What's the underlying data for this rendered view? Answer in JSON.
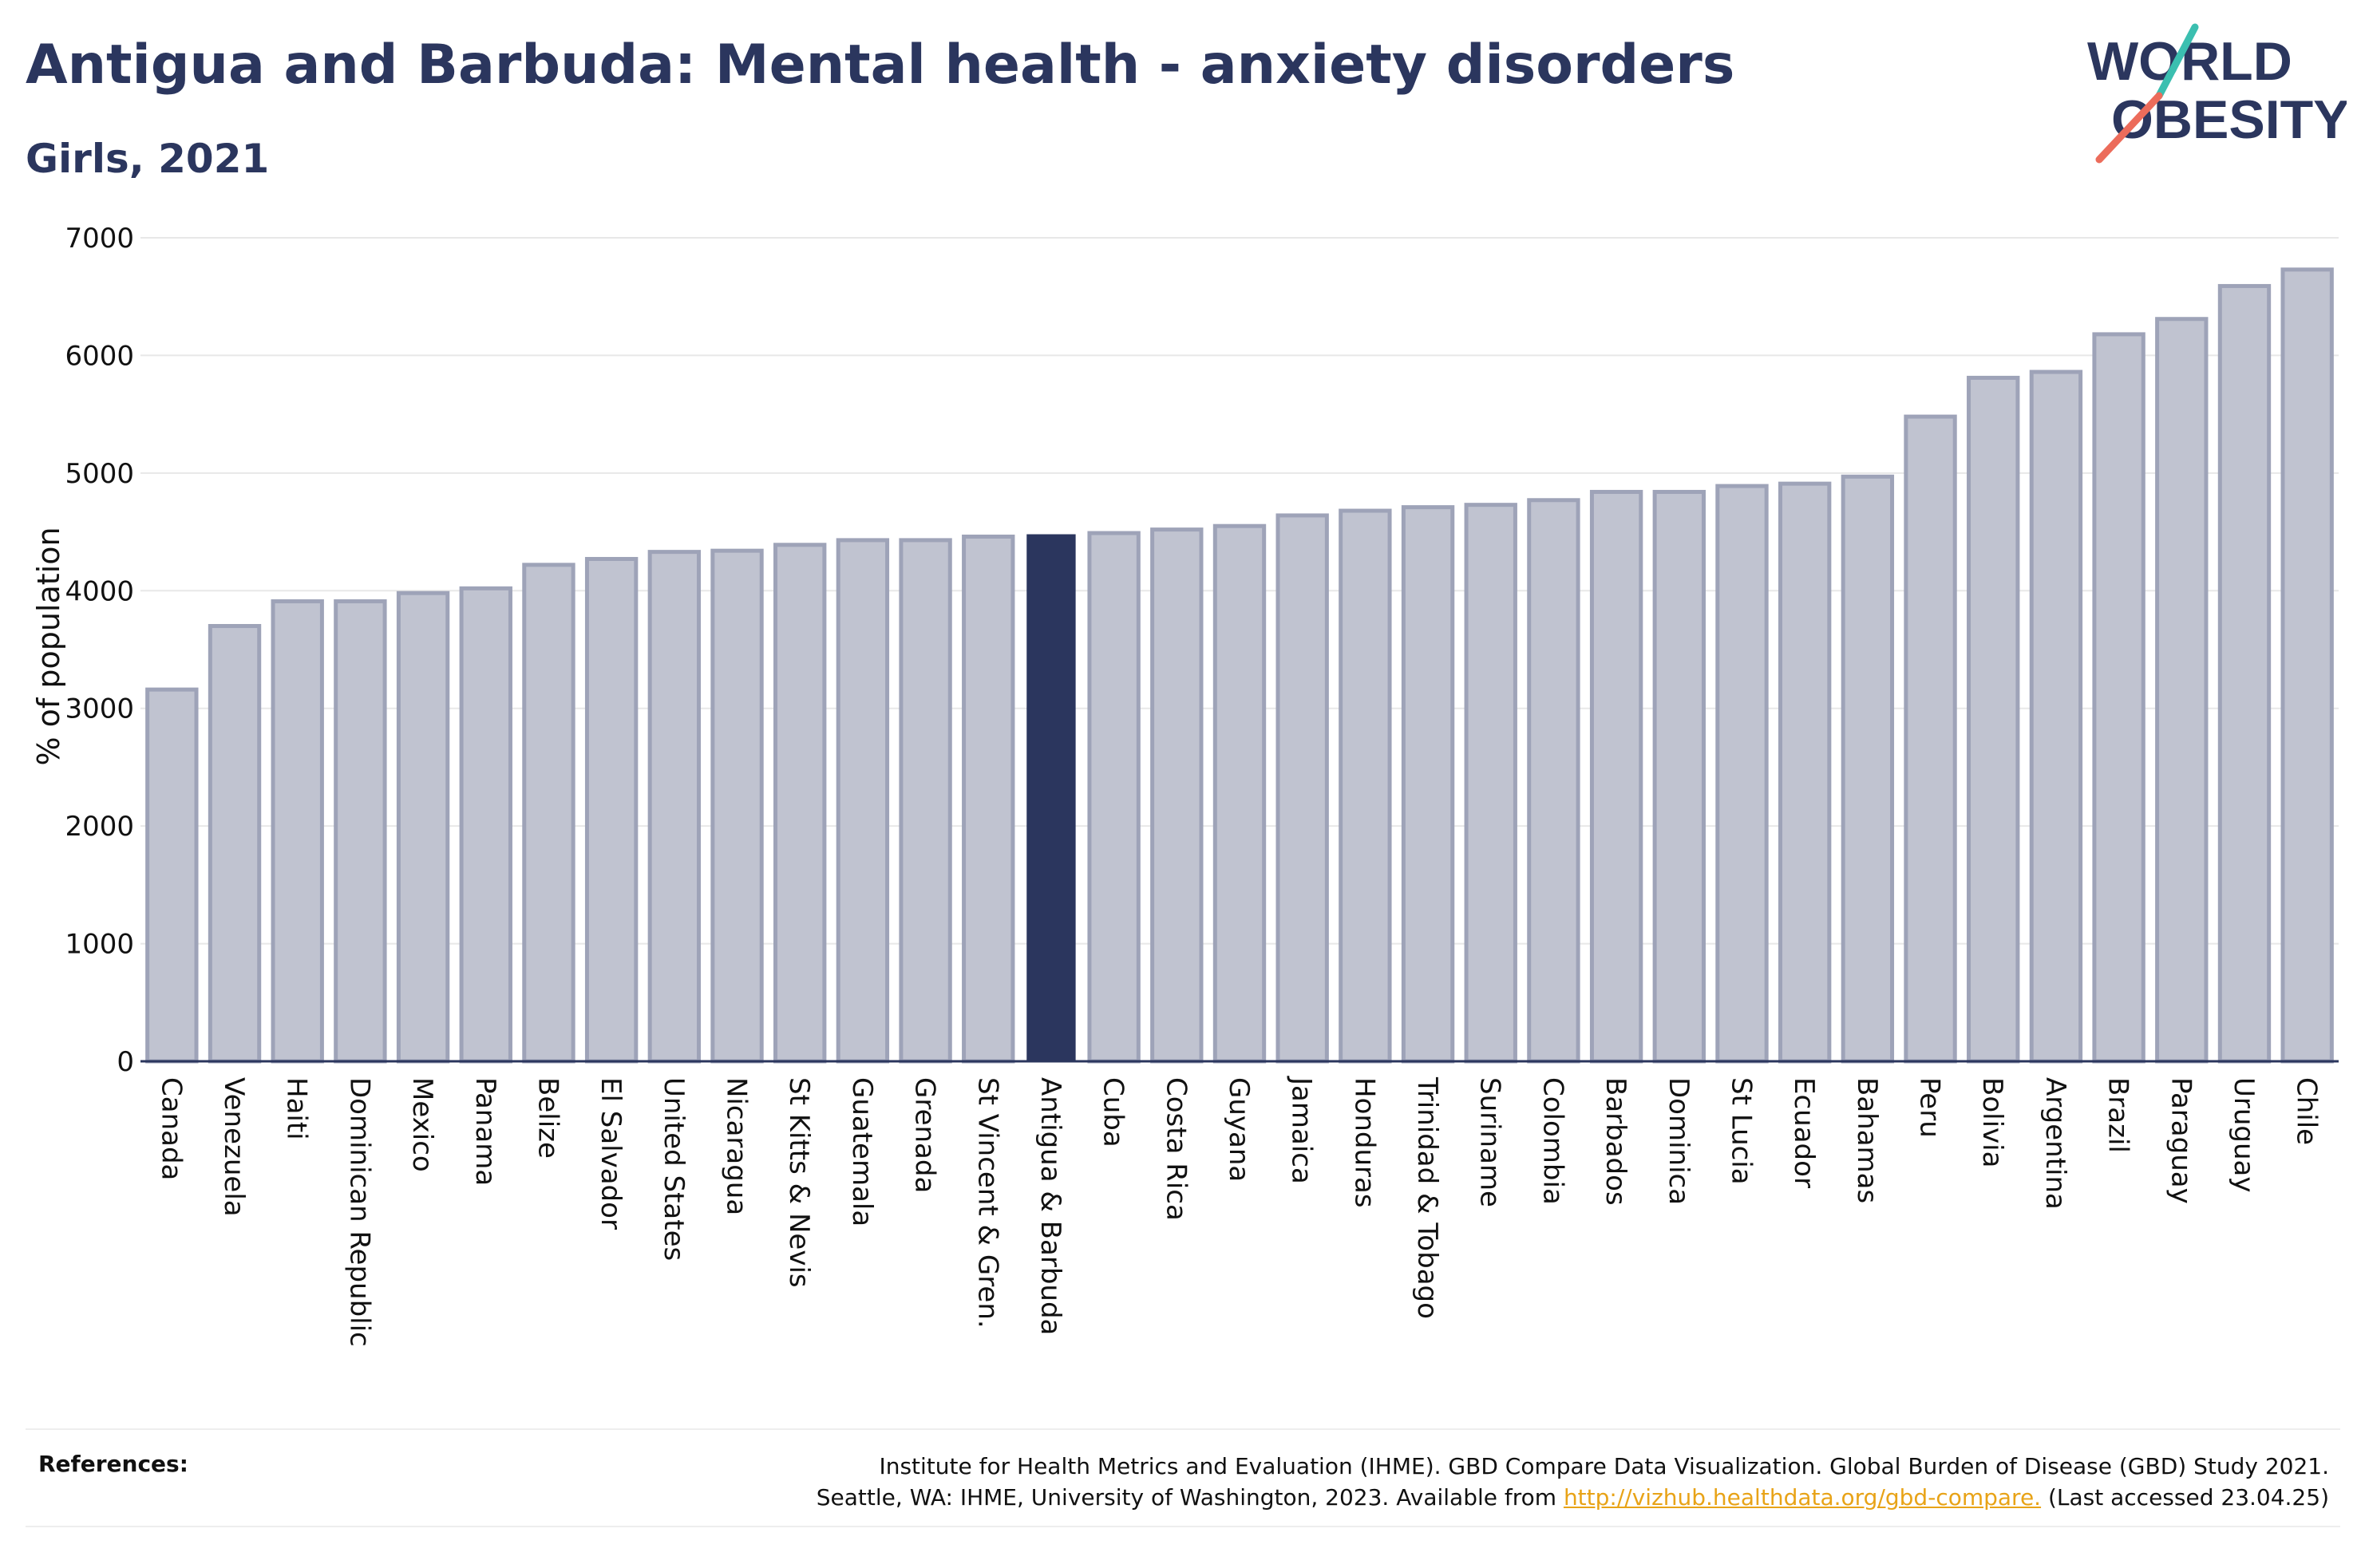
{
  "header": {
    "title": "Antigua and Barbuda: Mental health - anxiety disorders",
    "subtitle": "Girls, 2021"
  },
  "logo": {
    "line1": "WORLD",
    "line2": "OBESITY"
  },
  "colors": {
    "highlight_bar": "#2b365e",
    "other_bar": "#c0c3d0",
    "other_bar_border": "#9ea3b8",
    "grid": "#e8e8e8",
    "link": "#e8a317"
  },
  "chart_data": {
    "type": "bar",
    "ylabel": "% of population",
    "ylim": [
      0,
      7000
    ],
    "yticks": [
      0,
      1000,
      2000,
      3000,
      4000,
      5000,
      6000,
      7000
    ],
    "grid": true,
    "highlight": "Antigua & Barbuda",
    "categories": [
      "Canada",
      "Venezuela",
      "Haiti",
      "Dominican Republic",
      "Mexico",
      "Panama",
      "Belize",
      "El Salvador",
      "United States",
      "Nicaragua",
      "St Kitts & Nevis",
      "Guatemala",
      "Grenada",
      "St Vincent & Gren.",
      "Antigua & Barbuda",
      "Cuba",
      "Costa Rica",
      "Guyana",
      "Jamaica",
      "Honduras",
      "Trinidad & Tobago",
      "Suriname",
      "Colombia",
      "Barbados",
      "Dominica",
      "St Lucia",
      "Ecuador",
      "Bahamas",
      "Peru",
      "Bolivia",
      "Argentina",
      "Brazil",
      "Paraguay",
      "Uruguay",
      "Chile"
    ],
    "values": [
      3160,
      3700,
      3910,
      3910,
      3980,
      4020,
      4220,
      4270,
      4330,
      4340,
      4390,
      4430,
      4430,
      4460,
      4480,
      4490,
      4520,
      4550,
      4640,
      4680,
      4710,
      4730,
      4770,
      4840,
      4840,
      4890,
      4910,
      4970,
      5480,
      5810,
      5860,
      6180,
      6310,
      6590,
      6730
    ]
  },
  "references": {
    "label": "References:",
    "line1": "Institute for Health Metrics and Evaluation (IHME). GBD Compare Data Visualization. Global Burden of Disease (GBD) Study 2021.",
    "line2_prefix": "Seattle, WA: IHME, University of Washington, 2023. Available from ",
    "link": "http://vizhub.healthdata.org/gbd-compare.",
    "line2_suffix": " (Last accessed 23.04.25)"
  }
}
